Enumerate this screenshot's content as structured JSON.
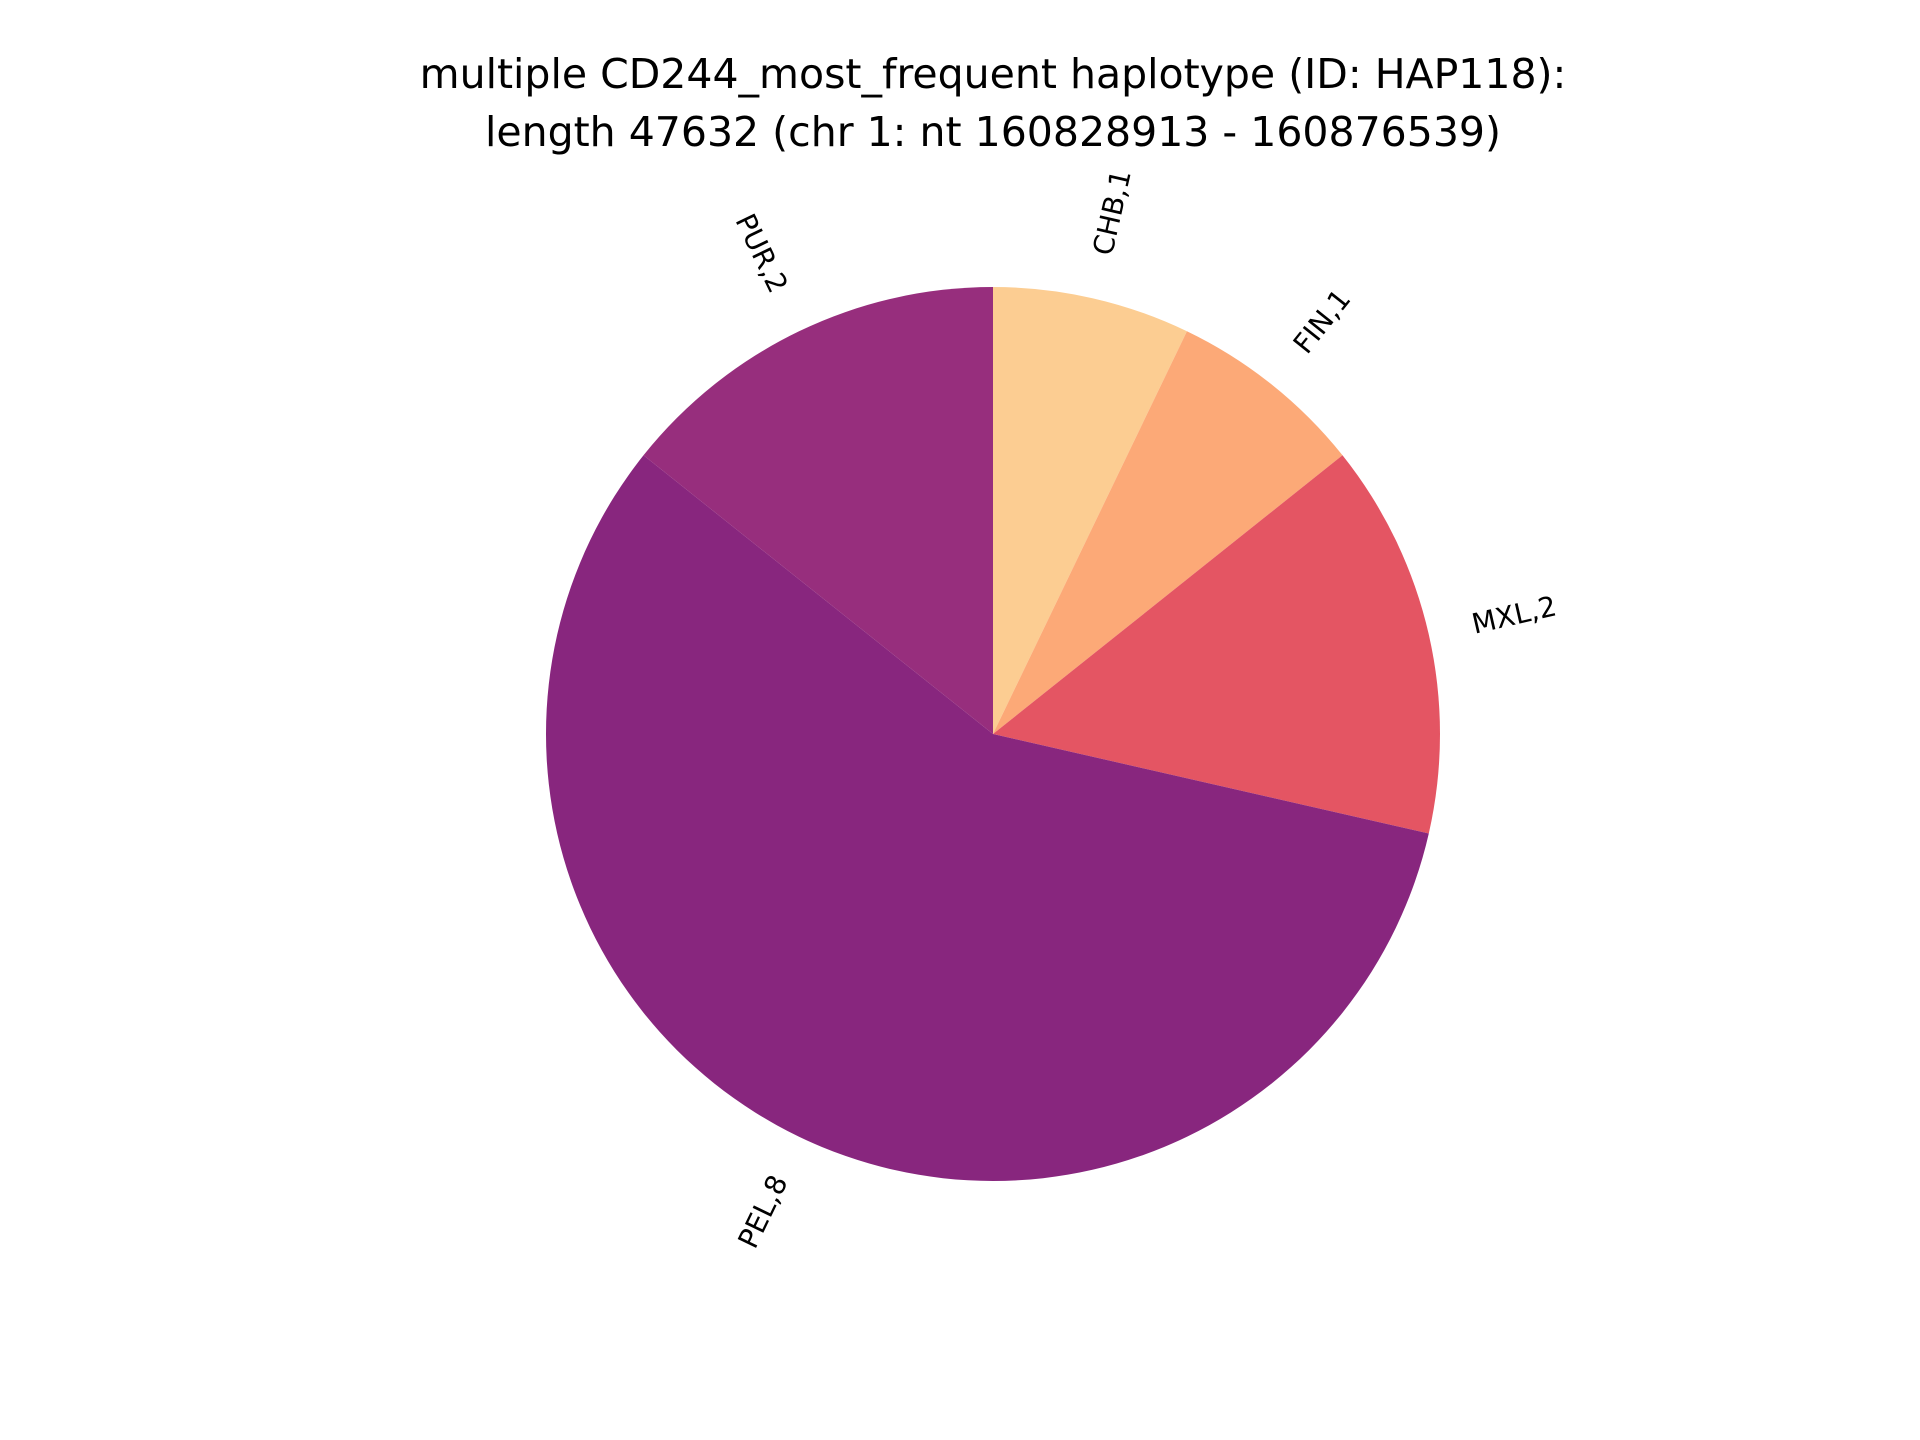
{
  "chart_data": {
    "type": "pie",
    "title": "multiple CD244_most_frequent haplotype (ID: HAP118):",
    "subtitle": "length 47632 (chr 1: nt 160828913 - 160876539)",
    "slices": [
      {
        "label": "CHB,1",
        "value": 1,
        "color": "#fccd92"
      },
      {
        "label": "FIN,1",
        "value": 1,
        "color": "#fca977"
      },
      {
        "label": "MXL,2",
        "value": 2,
        "color": "#e45563"
      },
      {
        "label": "PEL,8",
        "value": 8,
        "color": "#88267e"
      },
      {
        "label": "PUR,2",
        "value": 2,
        "color": "#972e7d"
      }
    ],
    "start_angle_deg": 90,
    "direction": "clockwise",
    "legend": "none"
  }
}
